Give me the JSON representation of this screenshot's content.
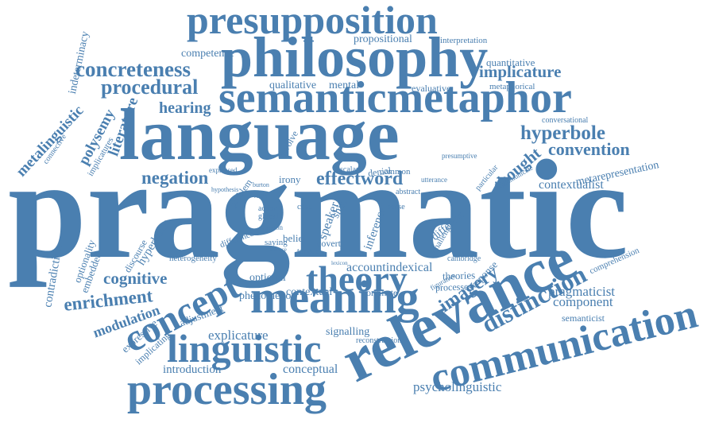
{
  "theme": {
    "word_color": "#4a7fb0",
    "background": "#ffffff"
  },
  "words": [
    "pragmatic",
    "language",
    "philosophy",
    "presupposition",
    "semanticmetaphor",
    "relevance",
    "communication",
    "meaning",
    "processing",
    "linguistic",
    "concept",
    "theory",
    "concreteness",
    "procedural",
    "hyperbole",
    "convention",
    "negation",
    "cognitive",
    "enrichment",
    "distinction",
    "imagery",
    "implicature",
    "contextualist",
    "pragmaticist",
    "component",
    "effectword",
    "literature",
    "polysemy",
    "thought",
    "hearing",
    "competence",
    "propositional",
    "interpretation",
    "quantitative",
    "metaphorical",
    "qualitative",
    "mental",
    "evaluative",
    "conversational",
    "metarepresentation",
    "metalinguistic",
    "indeterminacy",
    "modulation",
    "adjustment",
    "explicature",
    "psycholinguistic",
    "conceptual",
    "introduction",
    "signalling",
    "reconstruction",
    "contextual",
    "optional",
    "phenomenon",
    "accountindexical",
    "ordinate",
    "theories",
    "processes",
    "semanticist",
    "comprehension",
    "response",
    "cambridge",
    "contradiction",
    "optionality",
    "embedded",
    "discourse",
    "hyperbolic",
    "expressive",
    "implicating",
    "heterogeneity",
    "difference",
    "irony",
    "belief",
    "speaker",
    "inference",
    "different",
    "covert",
    "saying",
    "tongue",
    "shift",
    "denial",
    "common",
    "abstract",
    "utterance",
    "scalar",
    "case",
    "action",
    "global",
    "involve",
    "problem",
    "particular",
    "figurative",
    "presumptive",
    "communicate",
    "sense",
    "challenge",
    "connective",
    "implicatures",
    "expressed",
    "hypothesis",
    "evidence",
    "carston",
    "burton",
    "robert",
    "lexicon"
  ]
}
